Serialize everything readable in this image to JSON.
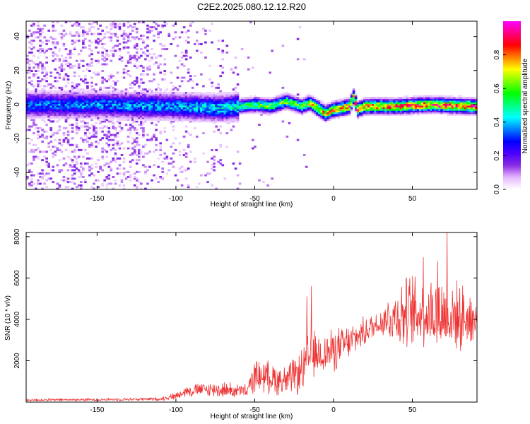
{
  "chart_data": [
    {
      "type": "heatmap",
      "title": "C2E2.2025.080.12.12.R20",
      "xlabel": "Height of straight line (km)",
      "ylabel": "Frequency (Hz)",
      "xlim": [
        -195,
        91
      ],
      "ylim": [
        -50,
        49
      ],
      "xticks": [
        -150,
        -100,
        -50,
        0,
        50
      ],
      "yticks": [
        -40,
        -20,
        0,
        20,
        40
      ],
      "colorbar": {
        "label": "Normalized spectral amplitude",
        "range": [
          0,
          1
        ],
        "ticks": [
          0.0,
          0.2,
          0.4,
          0.6,
          0.8
        ],
        "colors": [
          "#ffffff",
          "#e4b8ff",
          "#8a2be2",
          "#4b00ff",
          "#0000ff",
          "#0080ff",
          "#00ffff",
          "#00ff80",
          "#00ff00",
          "#80ff00",
          "#ffff00",
          "#ff8000",
          "#ff0000",
          "#ff0080",
          "#ff00ff"
        ]
      },
      "ridge": [
        {
          "x": -195,
          "f": 0
        },
        {
          "x": -150,
          "f": 0
        },
        {
          "x": -100,
          "f": -1
        },
        {
          "x": -70,
          "f": -2
        },
        {
          "x": -60,
          "f": -1
        },
        {
          "x": -50,
          "f": 0
        },
        {
          "x": -40,
          "f": -1
        },
        {
          "x": -30,
          "f": 2
        },
        {
          "x": -20,
          "f": -1
        },
        {
          "x": -15,
          "f": 1
        },
        {
          "x": -10,
          "f": -2
        },
        {
          "x": -5,
          "f": -5
        },
        {
          "x": 0,
          "f": -3
        },
        {
          "x": 10,
          "f": -1
        },
        {
          "x": 13,
          "f": 5
        },
        {
          "x": 15,
          "f": -3
        },
        {
          "x": 20,
          "f": -1
        },
        {
          "x": 40,
          "f": -1
        },
        {
          "x": 60,
          "f": 0
        },
        {
          "x": 91,
          "f": -1
        }
      ],
      "amplitude_profile": [
        {
          "x": -195,
          "a": 0.35
        },
        {
          "x": -100,
          "a": 0.4
        },
        {
          "x": -70,
          "a": 0.45
        },
        {
          "x": -60,
          "a": 0.5
        },
        {
          "x": -50,
          "a": 0.6
        },
        {
          "x": -20,
          "a": 0.62
        },
        {
          "x": -10,
          "a": 0.8
        },
        {
          "x": 0,
          "a": 0.8
        },
        {
          "x": 40,
          "a": 0.85
        },
        {
          "x": 91,
          "a": 0.9
        }
      ]
    },
    {
      "type": "line",
      "xlabel": "Height of straight line (km)",
      "ylabel": "SNR (10 * v/v)",
      "xlim": [
        -195,
        91
      ],
      "ylim": [
        0,
        8200
      ],
      "xticks": [
        -150,
        -100,
        -50,
        0,
        50
      ],
      "yticks": [
        2000,
        4000,
        6000,
        8000
      ],
      "line_color": "#ee3333",
      "series": [
        {
          "envelope": [
            {
              "x": -195,
              "mean": 100,
              "spread": 80
            },
            {
              "x": -150,
              "mean": 120,
              "spread": 80
            },
            {
              "x": -110,
              "mean": 150,
              "spread": 100
            },
            {
              "x": -100,
              "mean": 300,
              "spread": 200
            },
            {
              "x": -95,
              "mean": 500,
              "spread": 300
            },
            {
              "x": -85,
              "mean": 600,
              "spread": 400
            },
            {
              "x": -70,
              "mean": 600,
              "spread": 450
            },
            {
              "x": -55,
              "mean": 500,
              "spread": 400
            },
            {
              "x": -50,
              "mean": 1300,
              "spread": 900
            },
            {
              "x": -40,
              "mean": 1200,
              "spread": 900
            },
            {
              "x": -30,
              "mean": 1000,
              "spread": 900
            },
            {
              "x": -20,
              "mean": 1500,
              "spread": 1200
            },
            {
              "x": -15,
              "mean": 2200,
              "spread": 1500
            },
            {
              "x": -10,
              "mean": 2300,
              "spread": 1200
            },
            {
              "x": 0,
              "mean": 2500,
              "spread": 1200
            },
            {
              "x": 10,
              "mean": 2900,
              "spread": 1000
            },
            {
              "x": 20,
              "mean": 3400,
              "spread": 800
            },
            {
              "x": 30,
              "mean": 3900,
              "spread": 800
            },
            {
              "x": 40,
              "mean": 4200,
              "spread": 1800
            },
            {
              "x": 50,
              "mean": 4300,
              "spread": 2200
            },
            {
              "x": 60,
              "mean": 4300,
              "spread": 2200
            },
            {
              "x": 70,
              "mean": 4200,
              "spread": 2300
            },
            {
              "x": 80,
              "mean": 4100,
              "spread": 1800
            },
            {
              "x": 91,
              "mean": 4000,
              "spread": 1500
            }
          ],
          "spikes": [
            {
              "x": -17,
              "y": 5100
            },
            {
              "x": -14,
              "y": 5600
            },
            {
              "x": 57,
              "y": 7000
            },
            {
              "x": 66,
              "y": 6800
            },
            {
              "x": 72,
              "y": 8200
            }
          ]
        }
      ]
    }
  ]
}
